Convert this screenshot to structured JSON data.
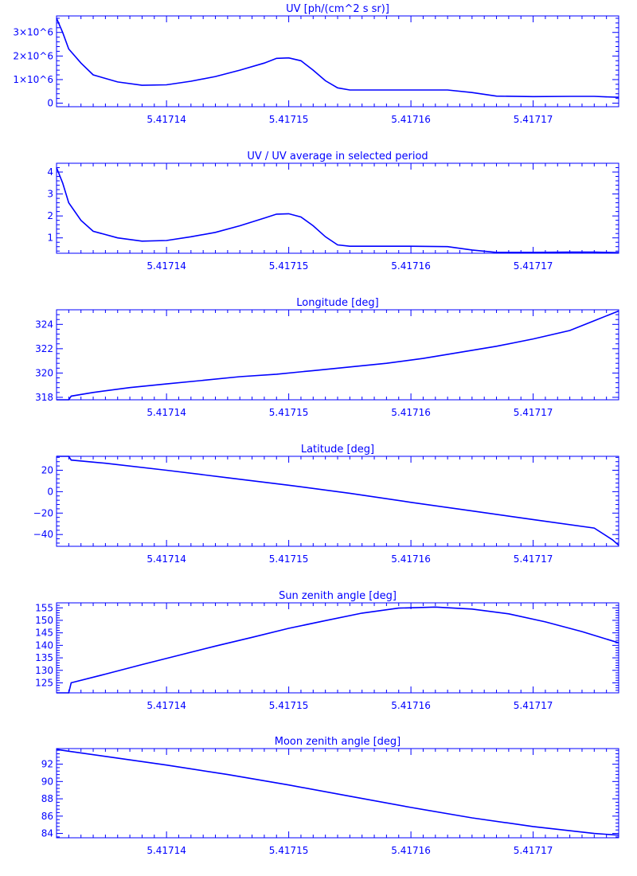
{
  "theme": {
    "line_color": "#0000ff",
    "background": "#ffffff"
  },
  "x_ticks": [
    "5.41714",
    "5.41715",
    "5.41716",
    "5.41717"
  ],
  "chart_data": [
    {
      "type": "line",
      "title": "UV [ph/(cm^2 s sr)]",
      "xlim": [
        5.417131,
        5.417177
      ],
      "ylim": [
        -150000,
        3700000
      ],
      "x_ticks": [
        5.41714,
        5.41715,
        5.41716,
        5.41717
      ],
      "y_ticks": [
        0,
        1000000,
        2000000,
        3000000
      ],
      "y_tick_labels": [
        "0",
        "1×10^6",
        "2×10^6",
        "3×10^6"
      ],
      "x": [
        5.417131,
        5.4171315,
        5.417132,
        5.417133,
        5.417134,
        5.417136,
        5.417138,
        5.41714,
        5.417142,
        5.417144,
        5.417146,
        5.417148,
        5.417149,
        5.41715,
        5.417151,
        5.417152,
        5.417153,
        5.417154,
        5.417155,
        5.417157,
        5.41716,
        5.417163,
        5.417165,
        5.417167,
        5.41717,
        5.417173,
        5.417175,
        5.417177
      ],
      "y": [
        3600000,
        3000000,
        2300000,
        1700000,
        1200000,
        900000,
        760000,
        780000,
        930000,
        1130000,
        1400000,
        1700000,
        1900000,
        1920000,
        1800000,
        1400000,
        950000,
        650000,
        560000,
        560000,
        560000,
        560000,
        450000,
        300000,
        280000,
        290000,
        290000,
        250000
      ]
    },
    {
      "type": "line",
      "title": "UV / UV average in selected period",
      "xlim": [
        5.417131,
        5.417177
      ],
      "ylim": [
        0.3,
        4.4
      ],
      "x_ticks": [
        5.41714,
        5.41715,
        5.41716,
        5.41717
      ],
      "y_ticks": [
        1,
        2,
        3,
        4
      ],
      "y_tick_labels": [
        "1",
        "2",
        "3",
        "4"
      ],
      "x": [
        5.417131,
        5.4171315,
        5.417132,
        5.417133,
        5.417134,
        5.417136,
        5.417138,
        5.41714,
        5.417142,
        5.417144,
        5.417146,
        5.417148,
        5.417149,
        5.41715,
        5.417151,
        5.417152,
        5.417153,
        5.417154,
        5.417155,
        5.417157,
        5.41716,
        5.417163,
        5.417165,
        5.417167,
        5.41717,
        5.417173,
        5.417175,
        5.417177
      ],
      "y": [
        4.2,
        3.5,
        2.6,
        1.8,
        1.3,
        1.0,
        0.85,
        0.88,
        1.05,
        1.25,
        1.55,
        1.9,
        2.08,
        2.1,
        1.95,
        1.55,
        1.05,
        0.68,
        0.62,
        0.62,
        0.62,
        0.6,
        0.45,
        0.34,
        0.34,
        0.35,
        0.35,
        0.33
      ]
    },
    {
      "type": "line",
      "title": "Longitude [deg]",
      "xlim": [
        5.417131,
        5.417177
      ],
      "ylim": [
        317.8,
        325.2
      ],
      "x_ticks": [
        5.41714,
        5.41715,
        5.41716,
        5.41717
      ],
      "y_ticks": [
        318,
        320,
        322,
        324
      ],
      "y_tick_labels": [
        "318",
        "320",
        "322",
        "324"
      ],
      "x": [
        5.417131,
        5.417132,
        5.4171322,
        5.417134,
        5.417137,
        5.41714,
        5.417143,
        5.417146,
        5.417149,
        5.417152,
        5.417155,
        5.417158,
        5.417161,
        5.417164,
        5.417167,
        5.41717,
        5.417173,
        5.417175,
        5.417177
      ],
      "y": [
        317.8,
        317.8,
        318.1,
        318.4,
        318.8,
        319.1,
        319.4,
        319.7,
        319.9,
        320.2,
        320.5,
        320.8,
        321.2,
        321.7,
        322.2,
        322.8,
        323.5,
        324.3,
        325.1
      ]
    },
    {
      "type": "line",
      "title": "Latitude [deg]",
      "xlim": [
        5.417131,
        5.417177
      ],
      "ylim": [
        -51,
        33
      ],
      "x_ticks": [
        5.41714,
        5.41715,
        5.41716,
        5.41717
      ],
      "y_ticks": [
        -40,
        -20,
        0,
        20
      ],
      "y_tick_labels": [
        "−40",
        "−20",
        "0",
        "20"
      ],
      "x": [
        5.417131,
        5.417132,
        5.4171322,
        5.417135,
        5.41714,
        5.417145,
        5.41715,
        5.417155,
        5.41716,
        5.417165,
        5.41717,
        5.417175,
        5.4171765,
        5.417177
      ],
      "y": [
        33,
        33,
        29.5,
        26.5,
        20,
        13,
        6,
        -1.5,
        -10,
        -18,
        -26,
        -34,
        -45,
        -50
      ]
    },
    {
      "type": "line",
      "title": "Sun zenith angle [deg]",
      "xlim": [
        5.417131,
        5.417177
      ],
      "ylim": [
        121,
        157
      ],
      "x_ticks": [
        5.41714,
        5.41715,
        5.41716,
        5.41717
      ],
      "y_ticks": [
        125,
        130,
        135,
        140,
        145,
        150,
        155
      ],
      "y_tick_labels": [
        "125",
        "130",
        "135",
        "140",
        "145",
        "150",
        "155"
      ],
      "x": [
        5.417131,
        5.417132,
        5.4171322,
        5.417135,
        5.417138,
        5.417141,
        5.417144,
        5.417147,
        5.41715,
        5.417153,
        5.417156,
        5.417159,
        5.417162,
        5.417165,
        5.417168,
        5.417171,
        5.417174,
        5.417177
      ],
      "y": [
        121,
        121,
        125,
        128.5,
        132.3,
        136,
        139.7,
        143.2,
        146.8,
        149.9,
        152.9,
        154.9,
        155.3,
        154.5,
        152.6,
        149.4,
        145.5,
        141
      ]
    },
    {
      "type": "line",
      "title": "Moon zenith angle [deg]",
      "xlim": [
        5.417131,
        5.417177
      ],
      "ylim": [
        83.5,
        93.8
      ],
      "x_ticks": [
        5.41714,
        5.41715,
        5.41716,
        5.41717
      ],
      "y_ticks": [
        84,
        86,
        88,
        90,
        92
      ],
      "y_tick_labels": [
        "84",
        "86",
        "88",
        "90",
        "92"
      ],
      "x": [
        5.417131,
        5.417132,
        5.417135,
        5.41714,
        5.417145,
        5.41715,
        5.417155,
        5.41716,
        5.417165,
        5.41717,
        5.417175,
        5.417177
      ],
      "y": [
        93.7,
        93.5,
        92.9,
        91.9,
        90.8,
        89.6,
        88.3,
        87.0,
        85.8,
        84.8,
        84.0,
        83.8
      ]
    }
  ]
}
